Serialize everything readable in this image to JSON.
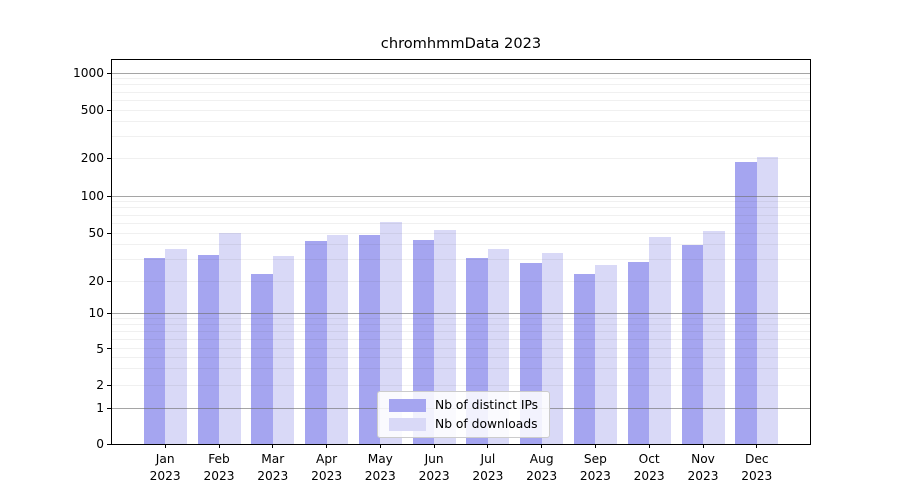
{
  "chart_data": {
    "type": "bar",
    "title": "chromhmmData 2023",
    "categories": [
      "Jan",
      "Feb",
      "Mar",
      "Apr",
      "May",
      "Jun",
      "Jul",
      "Aug",
      "Sep",
      "Oct",
      "Nov",
      "Dec"
    ],
    "year_label": "2023",
    "series": [
      {
        "name": "Nb of distinct IPs",
        "color": "#a5a5f0",
        "values": [
          31,
          33,
          23,
          43,
          48,
          44,
          31,
          28,
          23,
          29,
          40,
          185
        ]
      },
      {
        "name": "Nb of downloads",
        "color": "#d9d9f7",
        "values": [
          37,
          50,
          32,
          48,
          61,
          53,
          37,
          34,
          27,
          46,
          52,
          205
        ]
      }
    ],
    "y_ticks": [
      0,
      1,
      2,
      5,
      10,
      20,
      50,
      100,
      200,
      500,
      1000
    ],
    "y_scale": "symlog",
    "grid": true,
    "legend_position": "lower center"
  }
}
